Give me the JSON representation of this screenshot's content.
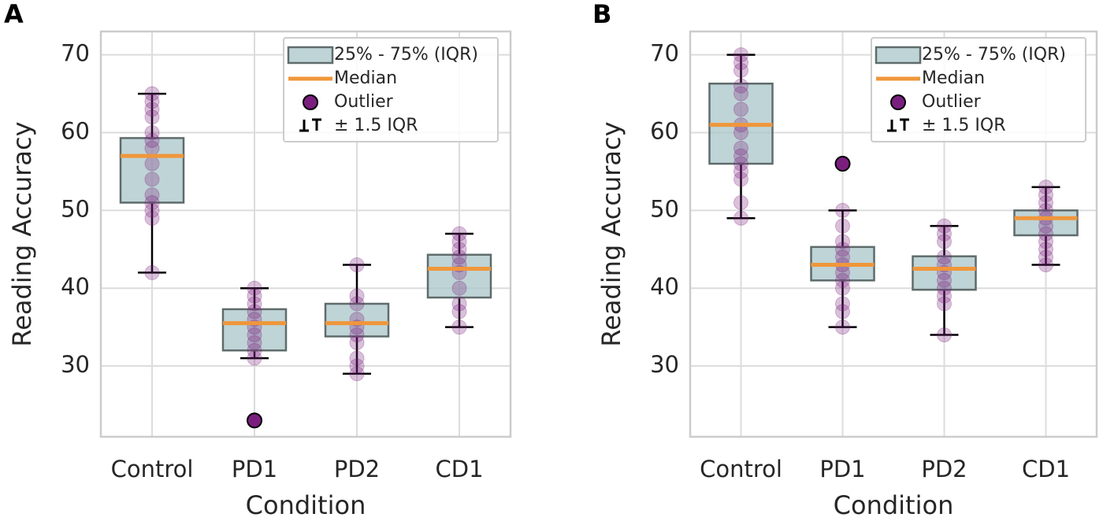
{
  "chart_data": [
    {
      "type": "box",
      "panel": "A",
      "ylabel": "Reading Accuracy",
      "xlabel": "Condition",
      "categories": [
        "Control",
        "PD1",
        "PD2",
        "CD1"
      ],
      "ylim": [
        20.9,
        73
      ],
      "yticks": [
        30,
        40,
        50,
        60,
        70
      ],
      "grid": true,
      "box_color": "#a9c5c8",
      "median_color": "#f0963a",
      "point_color": "#7b1f7f",
      "legend": [
        "25% - 75% (IQR)",
        "Median",
        "Outlier",
        "± 1.5 IQR"
      ],
      "boxes": [
        {
          "whislo": 42,
          "q1": 51,
          "median": 57,
          "q3": 59.3,
          "whishi": 65,
          "points": [
            42,
            49,
            50,
            51,
            52,
            54,
            56,
            58,
            59,
            60,
            62,
            63,
            64,
            65
          ]
        },
        {
          "whislo": 31,
          "q1": 32,
          "median": 35.5,
          "q3": 37.3,
          "whishi": 40,
          "points": [
            31,
            32,
            33,
            34,
            35,
            36,
            37,
            38,
            39,
            40
          ],
          "outliers": [
            23
          ]
        },
        {
          "whislo": 29,
          "q1": 33.8,
          "median": 35.5,
          "q3": 38,
          "whishi": 43,
          "points": [
            29,
            30,
            31,
            33,
            34,
            35,
            36,
            38,
            39,
            43
          ]
        },
        {
          "whislo": 35,
          "q1": 38.8,
          "median": 42.5,
          "q3": 44.3,
          "whishi": 47,
          "points": [
            35,
            37,
            38,
            40,
            42,
            43,
            44,
            45,
            46,
            47
          ]
        }
      ]
    },
    {
      "type": "box",
      "panel": "B",
      "ylabel": "Reading Accuracy",
      "xlabel": "Condition",
      "categories": [
        "Control",
        "PD1",
        "PD2",
        "CD1"
      ],
      "ylim": [
        20.9,
        73
      ],
      "yticks": [
        30,
        40,
        50,
        60,
        70
      ],
      "grid": true,
      "box_color": "#a9c5c8",
      "median_color": "#f0963a",
      "point_color": "#7b1f7f",
      "legend": [
        "25% - 75% (IQR)",
        "Median",
        "Outlier",
        "± 1.5 IQR"
      ],
      "boxes": [
        {
          "whislo": 49,
          "q1": 56,
          "median": 61,
          "q3": 66.3,
          "whishi": 70,
          "points": [
            49,
            51,
            54,
            55,
            56,
            57,
            58,
            60,
            61,
            63,
            65,
            66,
            68,
            69,
            70
          ]
        },
        {
          "whislo": 35,
          "q1": 41,
          "median": 43,
          "q3": 45.3,
          "whishi": 50,
          "points": [
            35,
            37,
            38,
            40,
            41,
            42,
            43,
            44,
            45,
            46,
            48,
            50
          ],
          "outliers": [
            56
          ]
        },
        {
          "whislo": 34,
          "q1": 39.8,
          "median": 42.5,
          "q3": 44.1,
          "whishi": 48,
          "points": [
            34,
            38,
            39,
            40,
            41,
            42,
            43,
            44,
            46,
            47,
            48
          ]
        },
        {
          "whislo": 43,
          "q1": 46.8,
          "median": 49,
          "q3": 50,
          "whishi": 53,
          "points": [
            43,
            44,
            45,
            46,
            47,
            48,
            49,
            50,
            51,
            52,
            53
          ]
        }
      ]
    }
  ]
}
